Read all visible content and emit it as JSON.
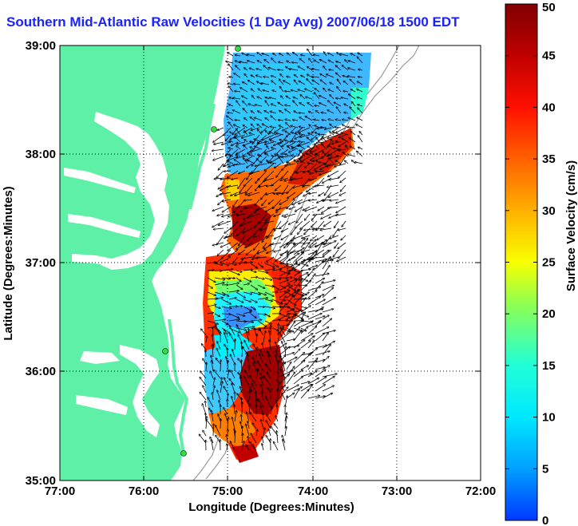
{
  "title": "Southern Mid-Atlantic Raw Velocities (1 Day Avg) 2007/06/18 1500 EDT",
  "x_axis": {
    "label": "Longitude (Degrees:Minutes)",
    "ticks": [
      "77:00",
      "76:00",
      "75:00",
      "74:00",
      "73:00",
      "72:00"
    ]
  },
  "y_axis": {
    "label": "Latitude (Degrees:Minutes)",
    "ticks": [
      "39:00",
      "38:00",
      "37:00",
      "36:00",
      "35:00"
    ]
  },
  "colorbar": {
    "label": "Surface Velocity (cm/s)",
    "ticks": [
      "50",
      "45",
      "40",
      "35",
      "30",
      "25",
      "20",
      "15",
      "10",
      "5",
      "0"
    ],
    "min": 0,
    "max": 50,
    "colors": [
      "#0038ff",
      "#00a8ff",
      "#00f0ff",
      "#20ffd0",
      "#a0ff40",
      "#ffff00",
      "#ffb000",
      "#ff6000",
      "#ff1000",
      "#c00000",
      "#800000"
    ]
  },
  "map": {
    "lon_range": [
      -77,
      -72
    ],
    "lat_range": [
      35,
      39
    ],
    "land_color": "#5ff0a8",
    "grid": "dotted"
  }
}
